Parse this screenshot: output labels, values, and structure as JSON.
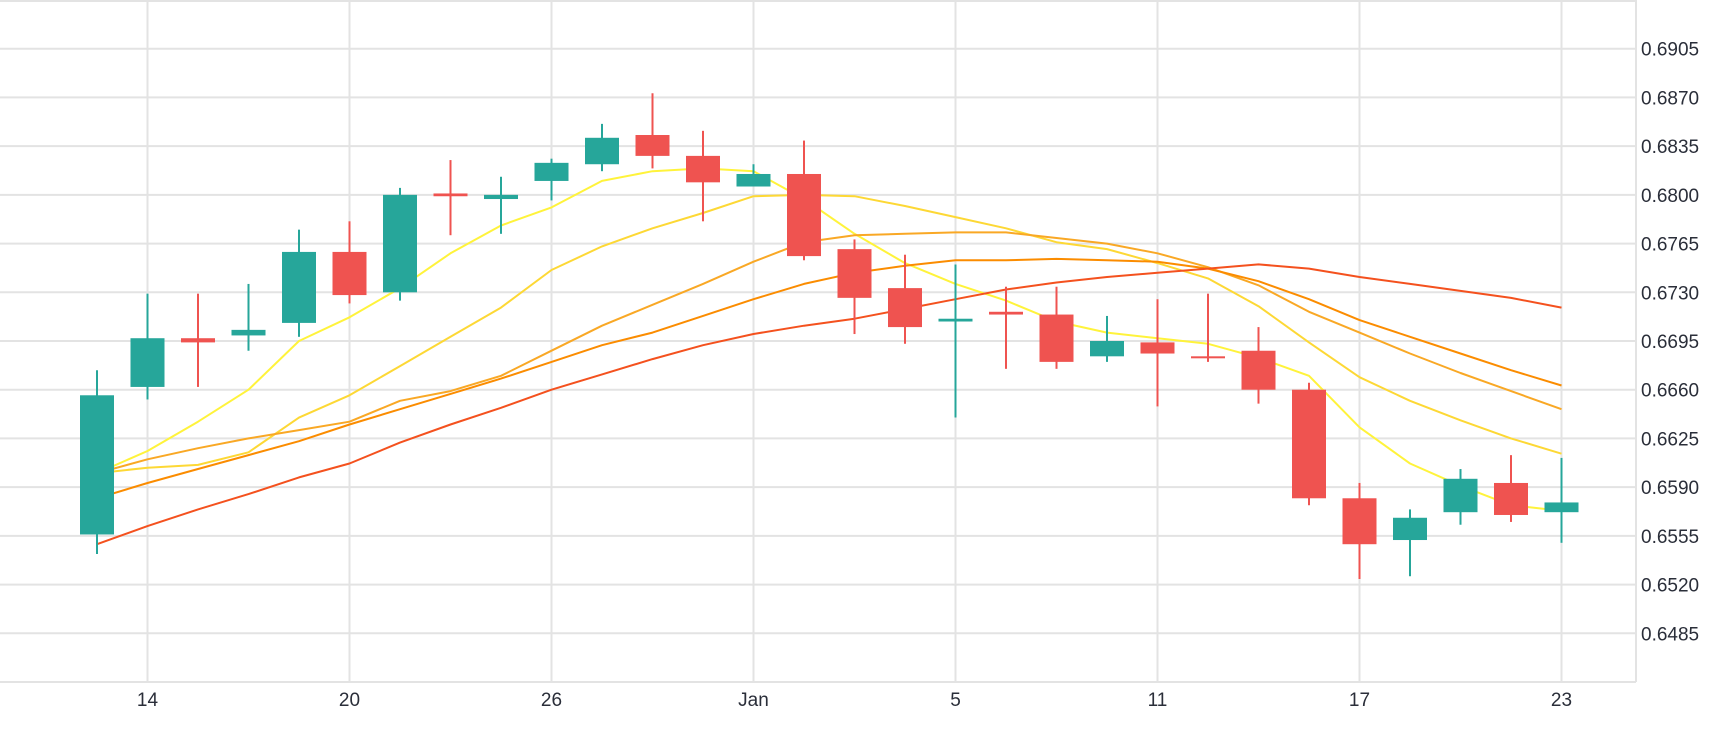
{
  "chart_data": {
    "type": "candlestick",
    "x_tick_labels": [
      {
        "label": "14",
        "index": 1
      },
      {
        "label": "20",
        "index": 5
      },
      {
        "label": "26",
        "index": 9
      },
      {
        "label": "Jan",
        "index": 13
      },
      {
        "label": "5",
        "index": 17
      },
      {
        "label": "11",
        "index": 21
      },
      {
        "label": "17",
        "index": 25
      },
      {
        "label": "23",
        "index": 29
      }
    ],
    "y_ticks": [
      "0.6905",
      "0.6870",
      "0.6835",
      "0.6800",
      "0.6765",
      "0.6730",
      "0.6695",
      "0.6660",
      "0.6625",
      "0.6590",
      "0.6555",
      "0.6520",
      "0.6485"
    ],
    "ylim": [
      0.645,
      0.694
    ],
    "grid": true,
    "colors": {
      "up": "#26a69a",
      "down": "#ef5350",
      "grid": "#e3e3e3",
      "text": "#2a2e39"
    },
    "candles": [
      {
        "o": 0.6556,
        "h": 0.6674,
        "l": 0.6542,
        "c": 0.6656
      },
      {
        "o": 0.6662,
        "h": 0.6729,
        "l": 0.6653,
        "c": 0.6697
      },
      {
        "o": 0.6697,
        "h": 0.6729,
        "l": 0.6662,
        "c": 0.6694
      },
      {
        "o": 0.6699,
        "h": 0.6736,
        "l": 0.6688,
        "c": 0.6703
      },
      {
        "o": 0.6708,
        "h": 0.6775,
        "l": 0.6698,
        "c": 0.6759
      },
      {
        "o": 0.6759,
        "h": 0.6781,
        "l": 0.6722,
        "c": 0.6728
      },
      {
        "o": 0.673,
        "h": 0.6805,
        "l": 0.6724,
        "c": 0.68
      },
      {
        "o": 0.6801,
        "h": 0.6825,
        "l": 0.6771,
        "c": 0.6799
      },
      {
        "o": 0.6797,
        "h": 0.6813,
        "l": 0.6772,
        "c": 0.68
      },
      {
        "o": 0.681,
        "h": 0.6826,
        "l": 0.6796,
        "c": 0.6823
      },
      {
        "o": 0.6822,
        "h": 0.6851,
        "l": 0.6817,
        "c": 0.6841
      },
      {
        "o": 0.6843,
        "h": 0.6873,
        "l": 0.6819,
        "c": 0.6828
      },
      {
        "o": 0.6828,
        "h": 0.6846,
        "l": 0.6781,
        "c": 0.6809
      },
      {
        "o": 0.6806,
        "h": 0.6822,
        "l": 0.6806,
        "c": 0.6815
      },
      {
        "o": 0.6815,
        "h": 0.6839,
        "l": 0.6753,
        "c": 0.6756
      },
      {
        "o": 0.6761,
        "h": 0.6768,
        "l": 0.67,
        "c": 0.6726
      },
      {
        "o": 0.6733,
        "h": 0.6757,
        "l": 0.6693,
        "c": 0.6705
      },
      {
        "o": 0.6709,
        "h": 0.675,
        "l": 0.664,
        "c": 0.6711
      },
      {
        "o": 0.6716,
        "h": 0.6734,
        "l": 0.6675,
        "c": 0.6714
      },
      {
        "o": 0.6714,
        "h": 0.6734,
        "l": 0.6675,
        "c": 0.668
      },
      {
        "o": 0.6684,
        "h": 0.6713,
        "l": 0.668,
        "c": 0.6695
      },
      {
        "o": 0.6694,
        "h": 0.6725,
        "l": 0.6648,
        "c": 0.6686
      },
      {
        "o": 0.6684,
        "h": 0.6729,
        "l": 0.668,
        "c": 0.6683
      },
      {
        "o": 0.6688,
        "h": 0.6705,
        "l": 0.665,
        "c": 0.666
      },
      {
        "o": 0.666,
        "h": 0.6665,
        "l": 0.6577,
        "c": 0.6582
      },
      {
        "o": 0.6582,
        "h": 0.6593,
        "l": 0.6524,
        "c": 0.6549
      },
      {
        "o": 0.6552,
        "h": 0.6574,
        "l": 0.6526,
        "c": 0.6568
      },
      {
        "o": 0.6572,
        "h": 0.6603,
        "l": 0.6563,
        "c": 0.6596
      },
      {
        "o": 0.6593,
        "h": 0.6613,
        "l": 0.6565,
        "c": 0.657
      },
      {
        "o": 0.6572,
        "h": 0.6611,
        "l": 0.655,
        "c": 0.6579
      }
    ],
    "series": [
      {
        "color": "#fff33b",
        "values": [
          0.66,
          0.6616,
          0.6637,
          0.666,
          0.6695,
          0.6712,
          0.6733,
          0.6758,
          0.6778,
          0.6791,
          0.681,
          0.6817,
          0.6819,
          0.6817,
          0.6797,
          0.6772,
          0.6751,
          0.6736,
          0.6724,
          0.6709,
          0.6701,
          0.6697,
          0.6693,
          0.6683,
          0.667,
          0.6633,
          0.6607,
          0.6591,
          0.6577,
          0.6573
        ]
      },
      {
        "color": "#fdd835",
        "values": [
          0.66,
          0.6604,
          0.6606,
          0.6615,
          0.664,
          0.6656,
          0.6677,
          0.6698,
          0.6719,
          0.6746,
          0.6763,
          0.6776,
          0.6787,
          0.6799,
          0.68,
          0.6799,
          0.6792,
          0.6784,
          0.6776,
          0.6766,
          0.6761,
          0.6751,
          0.674,
          0.672,
          0.6694,
          0.6669,
          0.6652,
          0.6638,
          0.6625,
          0.6614
        ]
      },
      {
        "color": "#f9a825",
        "values": [
          0.66,
          0.661,
          0.6618,
          0.6625,
          0.6631,
          0.6637,
          0.6652,
          0.6659,
          0.667,
          0.6688,
          0.6706,
          0.6721,
          0.6736,
          0.6752,
          0.6766,
          0.6771,
          0.6772,
          0.6773,
          0.6773,
          0.6769,
          0.6765,
          0.6758,
          0.6748,
          0.6735,
          0.6716,
          0.6701,
          0.6686,
          0.6672,
          0.6659,
          0.6646
        ]
      },
      {
        "color": "#fb8c00",
        "values": [
          0.6582,
          0.6593,
          0.6603,
          0.6613,
          0.6623,
          0.6635,
          0.6646,
          0.6657,
          0.6668,
          0.668,
          0.6692,
          0.6701,
          0.6713,
          0.6725,
          0.6736,
          0.6744,
          0.6749,
          0.6753,
          0.6753,
          0.6754,
          0.6753,
          0.6752,
          0.6747,
          0.6738,
          0.6725,
          0.671,
          0.6698,
          0.6686,
          0.6674,
          0.6663
        ]
      },
      {
        "color": "#f4511e",
        "values": [
          0.6549,
          0.6562,
          0.6574,
          0.6585,
          0.6597,
          0.6607,
          0.6622,
          0.6635,
          0.6647,
          0.666,
          0.6671,
          0.6682,
          0.6692,
          0.67,
          0.6706,
          0.6711,
          0.6718,
          0.6725,
          0.6732,
          0.6737,
          0.6741,
          0.6744,
          0.6747,
          0.675,
          0.6747,
          0.6741,
          0.6736,
          0.6731,
          0.6726,
          0.6719
        ]
      }
    ]
  }
}
